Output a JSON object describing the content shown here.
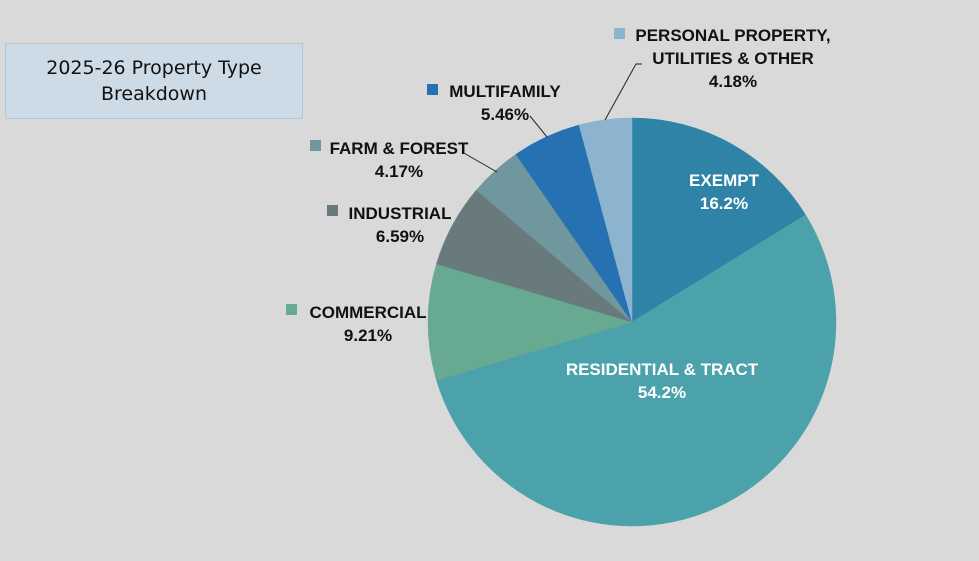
{
  "title": "2025-26 Property Type Breakdown",
  "chart_data": {
    "type": "pie",
    "title": "2025-26 Property Type Breakdown",
    "start": "12 o'clock",
    "direction": "clockwise",
    "slices": [
      {
        "label": "EXEMPT",
        "value": 16.2,
        "display": "16.2%",
        "color": "#2e83a6",
        "text_color": "#ffffff",
        "label_inside": true
      },
      {
        "label": "RESIDENTIAL & TRACT",
        "value": 54.2,
        "display": "54.2%",
        "color": "#4ca2ab",
        "text_color": "#ffffff",
        "label_inside": true
      },
      {
        "label": "COMMERCIAL",
        "value": 9.21,
        "display": "9.21%",
        "color": "#68a992",
        "text_color": "#111111",
        "label_inside": false
      },
      {
        "label": "INDUSTRIAL",
        "value": 6.59,
        "display": "6.59%",
        "color": "#697a7c",
        "text_color": "#111111",
        "label_inside": false
      },
      {
        "label": "FARM & FOREST",
        "value": 4.17,
        "display": "4.17%",
        "color": "#71979e",
        "text_color": "#111111",
        "label_inside": false
      },
      {
        "label": "MULTIFAMILY",
        "value": 5.46,
        "display": "5.46%",
        "color": "#2571b2",
        "text_color": "#111111",
        "label_inside": false
      },
      {
        "label": "PERSONAL PROPERTY, UTILITIES & OTHER",
        "value": 4.18,
        "display": "4.18%",
        "color": "#8db4cf",
        "text_color": "#111111",
        "label_inside": false,
        "label_lines": [
          "PERSONAL PROPERTY,",
          "UTILITIES & OTHER"
        ]
      }
    ]
  }
}
